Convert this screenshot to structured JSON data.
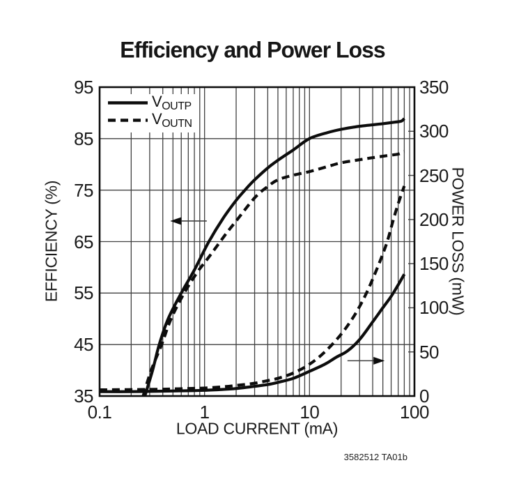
{
  "title": "Efficiency and Power Loss",
  "footnote": "3582512 TA01b",
  "legend": {
    "items": [
      {
        "name": "V",
        "sub": "OUTP",
        "line": "solid"
      },
      {
        "name": "V",
        "sub": "OUTN",
        "line": "dashed"
      }
    ]
  },
  "axes": {
    "x": {
      "label": "LOAD CURRENT (mA)",
      "scale": "log",
      "min": 0.1,
      "max": 100,
      "tick_labels": [
        "0.1",
        "1",
        "10",
        "100"
      ]
    },
    "y_left": {
      "label": "EFFICIENCY (%)",
      "min": 35,
      "max": 95,
      "tick_step": 10,
      "tick_labels": [
        "95",
        "85",
        "75",
        "65",
        "55",
        "45",
        "35"
      ]
    },
    "y_right": {
      "label": "POWER LOSS (mW)",
      "min": 0,
      "max": 350,
      "tick_step": 50,
      "tick_labels": [
        "350",
        "300",
        "250",
        "200",
        "150",
        "100",
        "50",
        "0"
      ]
    }
  },
  "colors": {
    "ink": "#0d0d0d",
    "grid": "#404040",
    "background": "#ffffff"
  },
  "chart_data": {
    "type": "line",
    "title": "Efficiency and Power Loss",
    "xlabel": "LOAD CURRENT (mA)",
    "x_scale": "log",
    "x_range": [
      0.1,
      100
    ],
    "ylabel_left": "EFFICIENCY (%)",
    "ylim_left": [
      35,
      95
    ],
    "ylabel_right": "POWER LOSS (mW)",
    "ylim_right": [
      0,
      350
    ],
    "grid": "log-minor-vertical, 10pct-horizontal",
    "legend_position": "top-left-inside",
    "series": [
      {
        "name": "VOUTP efficiency",
        "axis": "left",
        "line": "solid",
        "points": [
          [
            0.27,
            35
          ],
          [
            0.32,
            40
          ],
          [
            0.37,
            45
          ],
          [
            0.45,
            50
          ],
          [
            0.6,
            55
          ],
          [
            0.8,
            59.5
          ],
          [
            1.1,
            65
          ],
          [
            1.5,
            69.5
          ],
          [
            2.0,
            73
          ],
          [
            2.5,
            75.3
          ],
          [
            3,
            77
          ],
          [
            4,
            79.3
          ],
          [
            5,
            80.8
          ],
          [
            7,
            82.8
          ],
          [
            10,
            85
          ],
          [
            15,
            86.2
          ],
          [
            20,
            86.8
          ],
          [
            30,
            87.4
          ],
          [
            50,
            87.9
          ],
          [
            65,
            88.2
          ],
          [
            75,
            88.4
          ],
          [
            80,
            88.9
          ]
        ]
      },
      {
        "name": "VOUTN efficiency",
        "axis": "left",
        "line": "dashed",
        "points": [
          [
            0.26,
            35
          ],
          [
            0.31,
            40
          ],
          [
            0.39,
            45
          ],
          [
            0.48,
            50
          ],
          [
            0.64,
            55
          ],
          [
            0.85,
            59
          ],
          [
            1.1,
            62
          ],
          [
            1.6,
            66.5
          ],
          [
            2,
            69
          ],
          [
            3,
            73.5
          ],
          [
            4,
            75.7
          ],
          [
            5,
            77
          ],
          [
            7,
            77.9
          ],
          [
            10,
            78.6
          ],
          [
            15,
            79.6
          ],
          [
            20,
            80.3
          ],
          [
            30,
            80.9
          ],
          [
            40,
            81.3
          ],
          [
            55,
            81.7
          ],
          [
            70,
            82
          ],
          [
            80,
            82.5
          ]
        ]
      },
      {
        "name": "VOUTP power loss",
        "axis": "right",
        "line": "solid",
        "points": [
          [
            0.1,
            5
          ],
          [
            0.2,
            5
          ],
          [
            0.4,
            5.5
          ],
          [
            0.7,
            6
          ],
          [
            1,
            6.5
          ],
          [
            1.5,
            7.5
          ],
          [
            2,
            8.5
          ],
          [
            3,
            11
          ],
          [
            4,
            13
          ],
          [
            5,
            15.5
          ],
          [
            7,
            20
          ],
          [
            10,
            28
          ],
          [
            14,
            36
          ],
          [
            18,
            44
          ],
          [
            23,
            51
          ],
          [
            30,
            64
          ],
          [
            40,
            84
          ],
          [
            50,
            100
          ],
          [
            60,
            113
          ],
          [
            70,
            126
          ],
          [
            80,
            138
          ]
        ]
      },
      {
        "name": "VOUTN power loss",
        "axis": "right",
        "line": "dashed",
        "points": [
          [
            0.1,
            7
          ],
          [
            0.3,
            7.5
          ],
          [
            0.7,
            8.5
          ],
          [
            1,
            9
          ],
          [
            1.5,
            10.5
          ],
          [
            2,
            12
          ],
          [
            3,
            14.5
          ],
          [
            4,
            17.5
          ],
          [
            5,
            20
          ],
          [
            7,
            26
          ],
          [
            10,
            36
          ],
          [
            14,
            50
          ],
          [
            20,
            70
          ],
          [
            27,
            92
          ],
          [
            35,
            117
          ],
          [
            46,
            150
          ],
          [
            55,
            175
          ],
          [
            63,
            200
          ],
          [
            70,
            218
          ],
          [
            80,
            238
          ]
        ]
      }
    ],
    "annotations": [
      {
        "type": "arrow",
        "meaning": "efficiency-curves-read-left-axis",
        "axis": "left",
        "y": 69,
        "x_from": 1.05,
        "x_to": 0.47
      },
      {
        "type": "arrow",
        "meaning": "power-loss-curves-read-right-axis",
        "axis": "right",
        "y": 40,
        "x_from": 23,
        "x_to": 52
      }
    ]
  }
}
